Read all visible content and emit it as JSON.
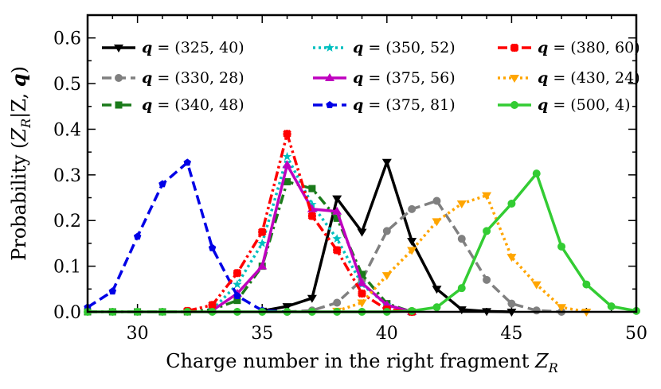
{
  "chart_data": {
    "type": "line",
    "xlabel": "Charge number in the right fragment Z_R",
    "xlabel_main": "Charge number in the right fragment ",
    "xlabel_var": "Z",
    "xlabel_sub": "R",
    "ylabel": "Probability (Z_R|Z, q)",
    "ylabel_main": "Probability (",
    "ylabel_var": "Z",
    "ylabel_sub": "R",
    "ylabel_rest": "|Z, ",
    "ylabel_q": "q",
    "ylabel_close": ")",
    "xlim": [
      28,
      50
    ],
    "ylim": [
      0,
      0.65
    ],
    "xticks": [
      30,
      35,
      40,
      45,
      50
    ],
    "xtick_labels": [
      "30",
      "35",
      "40",
      "45",
      "50"
    ],
    "yticks": [
      0,
      0.1,
      0.2,
      0.3,
      0.4,
      0.5,
      0.6
    ],
    "ytick_labels": [
      "0.0",
      "0.1",
      "0.2",
      "0.3",
      "0.4",
      "0.5",
      "0.6"
    ],
    "grid": false,
    "legend_position": "top",
    "legend_q": "q",
    "legend_eq": " = ",
    "series": [
      {
        "name": "(325, 40)",
        "color": "#000000",
        "dash": "solid",
        "marker": "triangle-down",
        "x": [
          35,
          36,
          37,
          38,
          39,
          40,
          41,
          42,
          43,
          44,
          45
        ],
        "y": [
          0.002,
          0.012,
          0.03,
          0.248,
          0.175,
          0.328,
          0.155,
          0.05,
          0.005,
          0.001,
          0.0
        ]
      },
      {
        "name": "(330, 28)",
        "color": "#808080",
        "dash": "dashed",
        "marker": "circle",
        "x": [
          36,
          37,
          38,
          39,
          40,
          41,
          42,
          43,
          44,
          45,
          46,
          47
        ],
        "y": [
          0.0,
          0.003,
          0.02,
          0.07,
          0.177,
          0.225,
          0.243,
          0.16,
          0.07,
          0.018,
          0.003,
          0.0
        ]
      },
      {
        "name": "(340, 48)",
        "color": "#1a7a1a",
        "dash": "dashdot",
        "marker": "square",
        "x": [
          28,
          29,
          30,
          31,
          32,
          33,
          34,
          35,
          36,
          37,
          38,
          39,
          40,
          41
        ],
        "y": [
          0.0,
          0.0,
          0.0,
          0.0,
          0.0,
          0.005,
          0.025,
          0.1,
          0.285,
          0.27,
          0.205,
          0.082,
          0.018,
          0.0
        ]
      },
      {
        "name": "(350, 52)",
        "color": "#00bfbf",
        "dash": "dotted",
        "marker": "star",
        "x": [
          33,
          34,
          35,
          36,
          37,
          38,
          39,
          40,
          41
        ],
        "y": [
          0.005,
          0.06,
          0.15,
          0.34,
          0.235,
          0.16,
          0.06,
          0.015,
          0.0
        ]
      },
      {
        "name": "(375, 56)",
        "color": "#bf00bf",
        "dash": "solid",
        "marker": "triangle-up",
        "x": [
          33,
          34,
          35,
          36,
          37,
          38,
          39,
          40,
          41
        ],
        "y": [
          0.003,
          0.04,
          0.1,
          0.322,
          0.225,
          0.22,
          0.063,
          0.015,
          0.0
        ]
      },
      {
        "name": "(375, 81)",
        "color": "#0000e6",
        "dash": "dashed",
        "marker": "pentagon",
        "x": [
          28,
          29,
          30,
          31,
          32,
          33,
          34,
          35,
          36
        ],
        "y": [
          0.01,
          0.045,
          0.165,
          0.28,
          0.327,
          0.14,
          0.035,
          0.003,
          0.0
        ]
      },
      {
        "name": "(380, 60)",
        "color": "#ff0000",
        "dash": "dashdotdot",
        "marker": "cross",
        "x": [
          32,
          33,
          34,
          35,
          36,
          37,
          38,
          39,
          40,
          41
        ],
        "y": [
          0.002,
          0.015,
          0.085,
          0.175,
          0.39,
          0.21,
          0.135,
          0.04,
          0.005,
          0.0
        ]
      },
      {
        "name": "(430, 24)",
        "color": "#ffa500",
        "dash": "dotted",
        "marker": "triangle-down",
        "x": [
          38,
          39,
          40,
          41,
          42,
          43,
          44,
          45,
          46,
          47,
          48
        ],
        "y": [
          0.002,
          0.02,
          0.08,
          0.135,
          0.198,
          0.237,
          0.255,
          0.12,
          0.06,
          0.01,
          0.0
        ]
      },
      {
        "name": "(500, 4)",
        "color": "#33cc33",
        "dash": "solid",
        "marker": "circle",
        "x": [
          28,
          29,
          30,
          31,
          32,
          33,
          34,
          35,
          36,
          37,
          38,
          39,
          40,
          41,
          42,
          43,
          44,
          45,
          46,
          47,
          48,
          49,
          50
        ],
        "y": [
          0.0,
          0.0,
          0.0,
          0.0,
          0.0,
          0.0,
          0.0,
          0.0,
          0.0,
          0.0,
          0.0,
          0.0,
          0.0,
          0.002,
          0.01,
          0.052,
          0.177,
          0.237,
          0.303,
          0.143,
          0.06,
          0.012,
          0.002
        ]
      }
    ]
  }
}
